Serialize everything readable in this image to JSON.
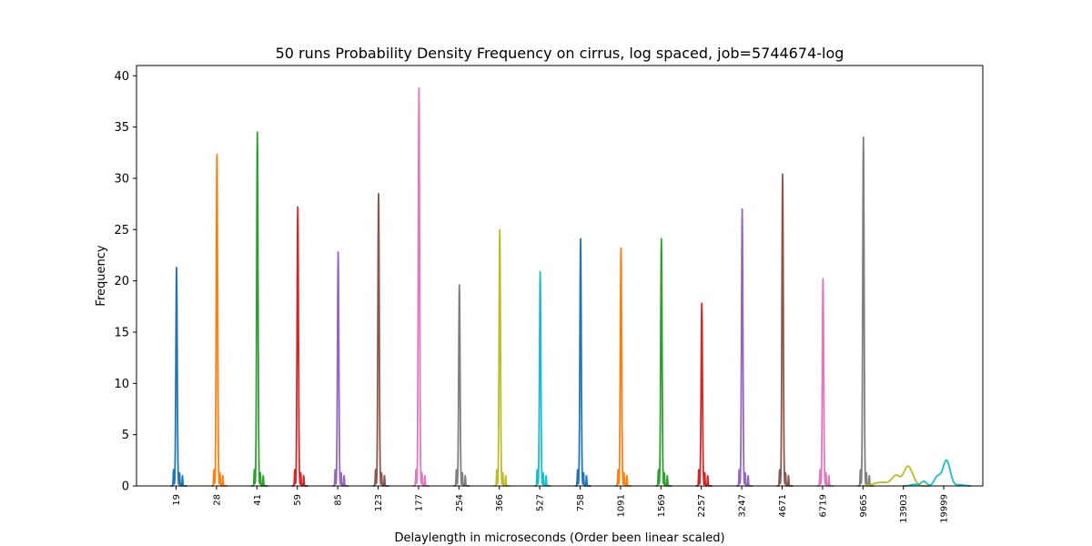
{
  "chart_data": {
    "type": "line",
    "title": "50 runs Probability Density Frequency on cirrus, log spaced, job=5744674-log",
    "xlabel": "Delaylength in microseconds (Order been linear scaled)",
    "ylabel": "Frequency",
    "ylim": [
      0,
      41
    ],
    "yticks": [
      0,
      5,
      10,
      15,
      20,
      25,
      30,
      35,
      40
    ],
    "grid": false,
    "legend": "none",
    "categories": [
      "19",
      "28",
      "41",
      "59",
      "85",
      "123",
      "177",
      "254",
      "366",
      "527",
      "758",
      "1091",
      "1569",
      "2257",
      "3247",
      "4671",
      "6719",
      "9665",
      "13903",
      "19999"
    ],
    "series": [
      {
        "category": "19",
        "color": "#1f77b4",
        "peak": 21.3
      },
      {
        "category": "28",
        "color": "#ff7f0e",
        "peak": 32.3
      },
      {
        "category": "41",
        "color": "#2ca02c",
        "peak": 34.5
      },
      {
        "category": "59",
        "color": "#d62728",
        "peak": 27.2
      },
      {
        "category": "85",
        "color": "#9467bd",
        "peak": 22.8
      },
      {
        "category": "123",
        "color": "#8c564b",
        "peak": 28.5
      },
      {
        "category": "177",
        "color": "#e377c2",
        "peak": 38.8
      },
      {
        "category": "254",
        "color": "#7f7f7f",
        "peak": 19.6
      },
      {
        "category": "366",
        "color": "#bcbd22",
        "peak": 25.0
      },
      {
        "category": "527",
        "color": "#17becf",
        "peak": 20.9
      },
      {
        "category": "758",
        "color": "#1f77b4",
        "peak": 24.1
      },
      {
        "category": "1091",
        "color": "#ff7f0e",
        "peak": 23.2
      },
      {
        "category": "1569",
        "color": "#2ca02c",
        "peak": 24.1
      },
      {
        "category": "2257",
        "color": "#d62728",
        "peak": 17.8
      },
      {
        "category": "3247",
        "color": "#9467bd",
        "peak": 27.0
      },
      {
        "category": "4671",
        "color": "#8c564b",
        "peak": 30.4
      },
      {
        "category": "6719",
        "color": "#e377c2",
        "peak": 20.2
      },
      {
        "category": "9665",
        "color": "#7f7f7f",
        "peak": 34.0
      },
      {
        "category": "13903",
        "color": "#bcbd22",
        "peak": 1.9
      },
      {
        "category": "19999",
        "color": "#17becf",
        "peak": 2.5
      }
    ]
  }
}
